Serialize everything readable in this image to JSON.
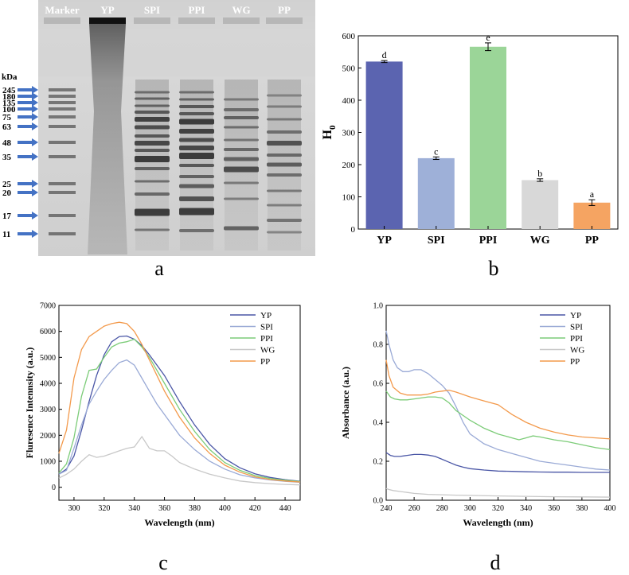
{
  "panel_letters": [
    "a",
    "b",
    "c",
    "d"
  ],
  "gel": {
    "unit_label": "kDa",
    "lane_labels": [
      "Marker",
      "YP",
      "SPI",
      "PPI",
      "WG",
      "PP"
    ],
    "marker_sizes": [
      "245",
      "180",
      "135",
      "100",
      "75",
      "63",
      "48",
      "35",
      "25",
      "20",
      "17",
      "11"
    ],
    "arrow_color": "#4472c4"
  },
  "chart_data": [
    {
      "id": "b",
      "type": "bar",
      "title": "",
      "xlabel": "",
      "ylabel": "H0",
      "ylim": [
        0,
        600
      ],
      "yticks": [
        0,
        100,
        200,
        300,
        400,
        500,
        600
      ],
      "categories": [
        "YP",
        "SPI",
        "PPI",
        "WG",
        "PP"
      ],
      "values": [
        520,
        220,
        566,
        152,
        82
      ],
      "errors": [
        3,
        4,
        12,
        4,
        9
      ],
      "significance": [
        "d",
        "c",
        "e",
        "b",
        "a"
      ],
      "colors": [
        "#5b64b0",
        "#9eb0d8",
        "#9bd598",
        "#d8d8d8",
        "#f5a462"
      ]
    },
    {
      "id": "c",
      "type": "line",
      "title": "",
      "xlabel": "Wavelength (nm)",
      "ylabel": "Fluresence Intennsity (a.u.)",
      "xlim": [
        290,
        450
      ],
      "ylim": [
        -500,
        7000
      ],
      "xticks": [
        300,
        320,
        340,
        360,
        380,
        400,
        420,
        440
      ],
      "yticks": [
        0,
        1000,
        2000,
        3000,
        4000,
        5000,
        6000,
        7000
      ],
      "legend": "top-right",
      "series": [
        {
          "name": "YP",
          "color": "#4a56a6",
          "x": [
            290,
            295,
            300,
            305,
            310,
            315,
            320,
            325,
            330,
            335,
            340,
            345,
            350,
            355,
            360,
            370,
            380,
            390,
            400,
            410,
            420,
            430,
            440,
            450
          ],
          "y": [
            500,
            700,
            1200,
            2200,
            3300,
            4300,
            5100,
            5600,
            5800,
            5820,
            5700,
            5450,
            5100,
            4700,
            4300,
            3300,
            2400,
            1650,
            1100,
            750,
            520,
            380,
            290,
            230
          ]
        },
        {
          "name": "SPI",
          "color": "#9aaad6",
          "x": [
            290,
            295,
            300,
            305,
            310,
            315,
            320,
            325,
            330,
            335,
            340,
            345,
            350,
            355,
            360,
            370,
            380,
            390,
            400,
            410,
            420,
            430,
            440,
            450
          ],
          "y": [
            500,
            650,
            1500,
            2400,
            3200,
            3700,
            4150,
            4500,
            4800,
            4900,
            4700,
            4200,
            3700,
            3200,
            2800,
            2000,
            1450,
            1000,
            700,
            480,
            360,
            280,
            230,
            190
          ]
        },
        {
          "name": "PPI",
          "color": "#7ccc78",
          "x": [
            290,
            295,
            300,
            305,
            310,
            315,
            320,
            325,
            330,
            335,
            340,
            345,
            350,
            355,
            360,
            370,
            380,
            390,
            400,
            410,
            420,
            430,
            440,
            450
          ],
          "y": [
            550,
            900,
            1900,
            3500,
            4500,
            4550,
            5000,
            5400,
            5550,
            5600,
            5700,
            5400,
            5000,
            4500,
            4000,
            3000,
            2150,
            1450,
            950,
            650,
            450,
            340,
            270,
            220
          ]
        },
        {
          "name": "WG",
          "color": "#c8c8c8",
          "x": [
            290,
            295,
            300,
            305,
            310,
            315,
            320,
            325,
            330,
            335,
            340,
            345,
            350,
            355,
            360,
            365,
            370,
            380,
            390,
            400,
            410,
            420,
            430,
            440,
            450
          ],
          "y": [
            350,
            500,
            700,
            1000,
            1250,
            1150,
            1200,
            1300,
            1400,
            1500,
            1550,
            1950,
            1500,
            1400,
            1400,
            1200,
            950,
            700,
            500,
            360,
            240,
            180,
            140,
            110,
            90
          ]
        },
        {
          "name": "PP",
          "color": "#f39a4c",
          "x": [
            290,
            295,
            300,
            305,
            310,
            315,
            320,
            325,
            330,
            335,
            340,
            345,
            350,
            355,
            360,
            370,
            380,
            390,
            400,
            410,
            420,
            430,
            440,
            450
          ],
          "y": [
            1300,
            2200,
            4200,
            5300,
            5800,
            6000,
            6200,
            6300,
            6350,
            6300,
            6000,
            5500,
            4900,
            4300,
            3700,
            2700,
            1900,
            1300,
            850,
            580,
            400,
            300,
            240,
            200
          ]
        }
      ]
    },
    {
      "id": "d",
      "type": "line",
      "title": "",
      "xlabel": "Wavelength (nm)",
      "ylabel": "Absorbance (a.u.)",
      "xlim": [
        240,
        400
      ],
      "ylim": [
        0,
        1.0
      ],
      "xticks": [
        240,
        260,
        280,
        300,
        320,
        340,
        360,
        380,
        400
      ],
      "yticks": [
        0.0,
        0.2,
        0.4,
        0.6,
        0.8,
        1.0
      ],
      "legend": "top-right",
      "series": [
        {
          "name": "YP",
          "color": "#4a56a6",
          "x": [
            240,
            243,
            246,
            250,
            255,
            260,
            265,
            270,
            275,
            280,
            285,
            290,
            295,
            300,
            310,
            320,
            330,
            340,
            350,
            360,
            370,
            380,
            390,
            400
          ],
          "y": [
            0.245,
            0.23,
            0.225,
            0.225,
            0.23,
            0.235,
            0.235,
            0.232,
            0.225,
            0.21,
            0.195,
            0.18,
            0.17,
            0.162,
            0.155,
            0.15,
            0.148,
            0.146,
            0.145,
            0.144,
            0.144,
            0.143,
            0.143,
            0.143
          ]
        },
        {
          "name": "SPI",
          "color": "#9aaad6",
          "x": [
            240,
            242,
            245,
            248,
            252,
            256,
            260,
            265,
            270,
            275,
            280,
            285,
            290,
            295,
            300,
            310,
            320,
            330,
            340,
            350,
            360,
            370,
            380,
            390,
            400
          ],
          "y": [
            0.87,
            0.8,
            0.72,
            0.68,
            0.66,
            0.66,
            0.67,
            0.67,
            0.65,
            0.62,
            0.59,
            0.55,
            0.48,
            0.4,
            0.34,
            0.29,
            0.26,
            0.24,
            0.22,
            0.2,
            0.19,
            0.18,
            0.17,
            0.16,
            0.155
          ]
        },
        {
          "name": "PPI",
          "color": "#7ccc78",
          "x": [
            240,
            243,
            246,
            250,
            255,
            260,
            265,
            270,
            275,
            280,
            285,
            290,
            300,
            310,
            320,
            330,
            335,
            340,
            345,
            350,
            360,
            370,
            380,
            390,
            400
          ],
          "y": [
            0.56,
            0.53,
            0.52,
            0.515,
            0.515,
            0.52,
            0.525,
            0.53,
            0.53,
            0.525,
            0.5,
            0.46,
            0.41,
            0.37,
            0.34,
            0.32,
            0.31,
            0.32,
            0.33,
            0.325,
            0.31,
            0.3,
            0.285,
            0.27,
            0.26
          ]
        },
        {
          "name": "WG",
          "color": "#c8c8c8",
          "x": [
            240,
            242,
            245,
            250,
            255,
            260,
            270,
            280,
            290,
            300,
            320,
            340,
            360,
            380,
            400
          ],
          "y": [
            0.06,
            0.055,
            0.05,
            0.045,
            0.04,
            0.035,
            0.03,
            0.028,
            0.026,
            0.025,
            0.022,
            0.02,
            0.018,
            0.017,
            0.016
          ]
        },
        {
          "name": "PP",
          "color": "#f39a4c",
          "x": [
            240,
            242,
            245,
            250,
            255,
            260,
            265,
            270,
            275,
            280,
            285,
            290,
            300,
            310,
            320,
            330,
            340,
            350,
            360,
            370,
            380,
            390,
            400
          ],
          "y": [
            0.72,
            0.64,
            0.58,
            0.55,
            0.54,
            0.54,
            0.54,
            0.545,
            0.555,
            0.56,
            0.565,
            0.555,
            0.53,
            0.51,
            0.49,
            0.44,
            0.4,
            0.37,
            0.35,
            0.335,
            0.325,
            0.32,
            0.315
          ]
        }
      ]
    }
  ]
}
